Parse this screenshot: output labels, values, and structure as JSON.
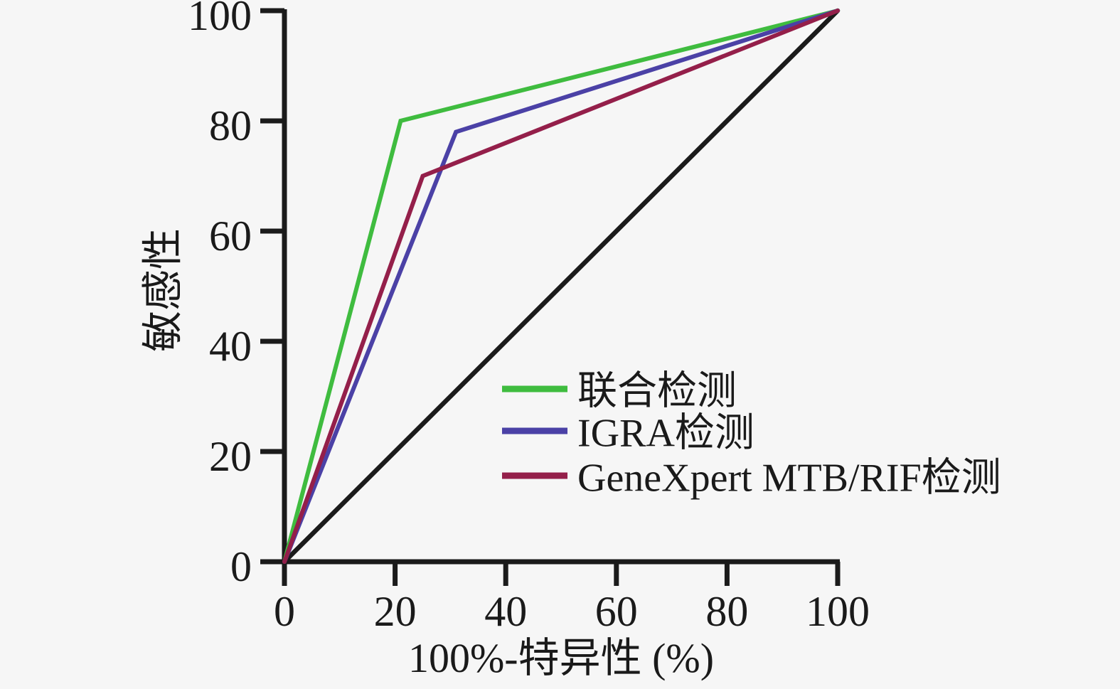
{
  "page": {
    "background": "#f6f6f6",
    "text_color": "#1a1a1a"
  },
  "chart_data": {
    "type": "line",
    "subtype": "roc-curve",
    "title": "",
    "xlabel": "100%-特异性 (%)",
    "ylabel": "敏感性",
    "xlim": [
      0,
      100
    ],
    "ylim": [
      0,
      100
    ],
    "x_ticks": [
      0,
      20,
      40,
      60,
      80,
      100
    ],
    "y_ticks": [
      0,
      20,
      40,
      60,
      80,
      100
    ],
    "grid": false,
    "legend_position": "inside-center-right",
    "axis_color": "#1b1b1b",
    "series": [
      {
        "name": "联合检测",
        "color": "#3fbc3f",
        "points": [
          [
            0,
            0
          ],
          [
            21,
            80
          ],
          [
            100,
            100
          ]
        ],
        "show_in_legend": true,
        "is_reference": false
      },
      {
        "name": "IGRA检测",
        "color": "#4b41a6",
        "points": [
          [
            0,
            0
          ],
          [
            31,
            78
          ],
          [
            100,
            100
          ]
        ],
        "show_in_legend": true,
        "is_reference": false
      },
      {
        "name": "GeneXpert MTB/RIF检测",
        "color": "#941f4a",
        "points": [
          [
            0,
            0
          ],
          [
            25,
            70
          ],
          [
            100,
            100
          ]
        ],
        "show_in_legend": true,
        "is_reference": false
      },
      {
        "name": "reference-diagonal",
        "color": "#1b1b1b",
        "points": [
          [
            0,
            0
          ],
          [
            100,
            100
          ]
        ],
        "show_in_legend": false,
        "is_reference": true
      }
    ]
  }
}
